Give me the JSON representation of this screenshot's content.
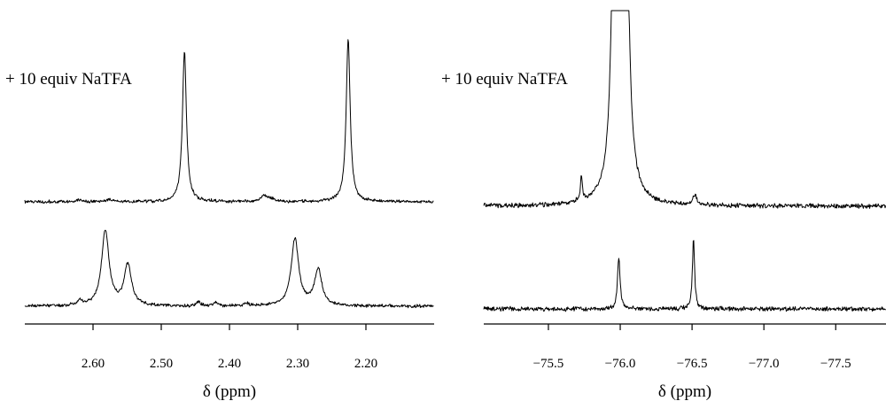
{
  "chart_data": [
    {
      "type": "line",
      "panel": "left",
      "annotation": "+ 10 equiv NaTFA",
      "xlabel": "δ (ppm)",
      "ylabel": "",
      "xlim": [
        2.7,
        2.1
      ],
      "x_reversed": true,
      "x_ticks": [
        "2.60",
        "2.50",
        "2.40",
        "2.30",
        "2.20"
      ],
      "grid": false,
      "series": [
        {
          "spectrum": "upper",
          "baseline": 0.0,
          "peaks": [
            {
              "x": 2.466,
              "height": 1.0,
              "width": 0.0035
            },
            {
              "x": 2.226,
              "height": 1.08,
              "width": 0.0035
            },
            {
              "x": 2.35,
              "height": 0.035,
              "width": 0.006
            },
            {
              "x": 2.34,
              "height": 0.02,
              "width": 0.006
            },
            {
              "x": 2.575,
              "height": 0.015,
              "width": 0.006
            },
            {
              "x": 2.62,
              "height": 0.015,
              "width": 0.005
            }
          ]
        },
        {
          "spectrum": "lower",
          "baseline": 0.0,
          "peaks": [
            {
              "x": 2.582,
              "height": 0.5,
              "width": 0.0065
            },
            {
              "x": 2.549,
              "height": 0.27,
              "width": 0.0065
            },
            {
              "x": 2.304,
              "height": 0.45,
              "width": 0.0065
            },
            {
              "x": 2.27,
              "height": 0.24,
              "width": 0.0065
            },
            {
              "x": 2.62,
              "height": 0.03,
              "width": 0.004
            },
            {
              "x": 2.445,
              "height": 0.03,
              "width": 0.003
            },
            {
              "x": 2.42,
              "height": 0.025,
              "width": 0.003
            },
            {
              "x": 2.375,
              "height": 0.02,
              "width": 0.003
            }
          ]
        }
      ]
    },
    {
      "type": "line",
      "panel": "right",
      "annotation": "+ 10 equiv NaTFA",
      "xlabel": "δ (ppm)",
      "ylabel": "",
      "xlim": [
        -75.05,
        -77.85
      ],
      "x_reversed": true,
      "x_ticks": [
        "−75.5",
        "−76.0",
        "−76.5",
        "−77.0",
        "−77.5"
      ],
      "grid": false,
      "series": [
        {
          "spectrum": "upper",
          "baseline": 0.0,
          "clipped": true,
          "peaks": [
            {
              "x": -75.97,
              "height": 4.0,
              "width": 0.02
            },
            {
              "x": -76.03,
              "height": 4.0,
              "width": 0.02
            },
            {
              "x": -75.73,
              "height": 0.16,
              "width": 0.008
            },
            {
              "x": -76.52,
              "height": 0.07,
              "width": 0.015
            }
          ]
        },
        {
          "spectrum": "lower",
          "baseline": 0.0,
          "peaks": [
            {
              "x": -75.99,
              "height": 0.34,
              "width": 0.011
            },
            {
              "x": -76.51,
              "height": 0.47,
              "width": 0.009
            }
          ]
        }
      ]
    }
  ]
}
